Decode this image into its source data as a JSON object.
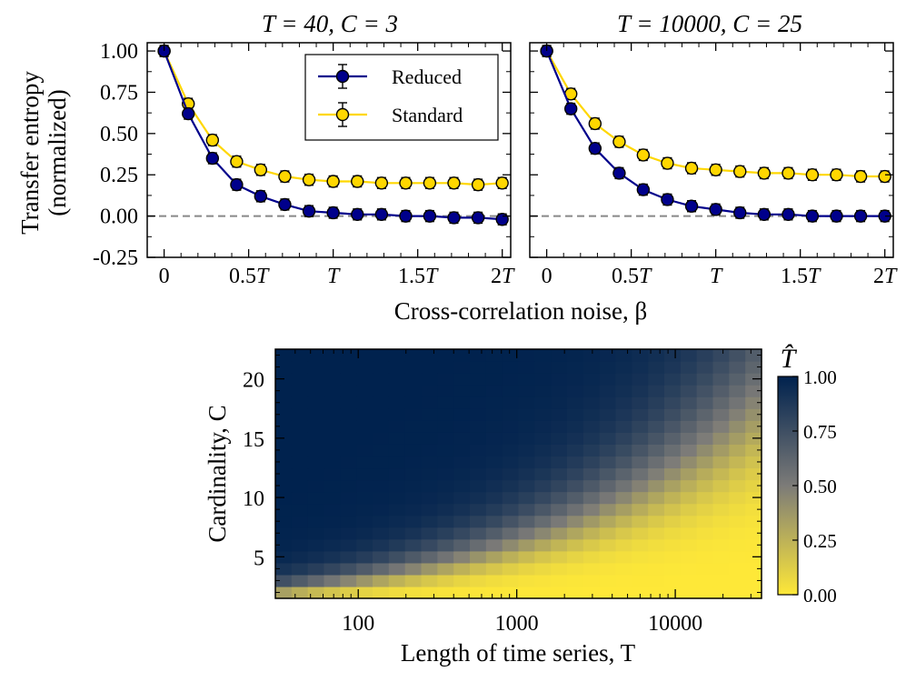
{
  "colors": {
    "reduced": "#00008b",
    "standard": "#ffd700",
    "marker_edge": "#000000",
    "zero_line": "#888888",
    "cmap_high": "#00224e",
    "cmap_mid": "#7c7b78",
    "cmap_low": "#fee838"
  },
  "chart_data": [
    {
      "type": "line",
      "panel": "top-left",
      "title": "T = 40, C = 3",
      "ylabel_line1": "Transfer entropy",
      "ylabel_line2": "(normalized)",
      "xlabel": "",
      "ylim": [
        -0.25,
        1.05
      ],
      "yticks": [
        "1.00",
        "0.75",
        "0.50",
        "0.25",
        "0.00",
        "-0.25"
      ],
      "ytick_values": [
        1.0,
        0.75,
        0.5,
        0.25,
        0.0,
        -0.25
      ],
      "xlim": [
        -0.1,
        2.05
      ],
      "xticks": [
        "0",
        "0.5T",
        "T",
        "1.5T",
        "2T"
      ],
      "xtick_values": [
        0,
        0.5,
        1.0,
        1.5,
        2.0
      ],
      "zero_line": true,
      "legend_position": "top-right",
      "x": [
        0,
        0.143,
        0.286,
        0.429,
        0.571,
        0.714,
        0.857,
        1.0,
        1.143,
        1.286,
        1.429,
        1.571,
        1.714,
        1.857,
        2.0
      ],
      "series": [
        {
          "name": "Reduced",
          "values": [
            1.0,
            0.62,
            0.35,
            0.19,
            0.12,
            0.07,
            0.03,
            0.02,
            0.01,
            0.01,
            0.0,
            0.0,
            -0.01,
            -0.01,
            -0.02
          ],
          "errors": [
            0.01,
            0.03,
            0.03,
            0.02,
            0.02,
            0.02,
            0.02,
            0.02,
            0.02,
            0.02,
            0.02,
            0.02,
            0.02,
            0.02,
            0.02
          ]
        },
        {
          "name": "Standard",
          "values": [
            1.0,
            0.68,
            0.46,
            0.33,
            0.28,
            0.24,
            0.22,
            0.21,
            0.21,
            0.2,
            0.2,
            0.2,
            0.2,
            0.19,
            0.2
          ],
          "errors": [
            0.01,
            0.02,
            0.02,
            0.02,
            0.02,
            0.02,
            0.02,
            0.02,
            0.02,
            0.02,
            0.02,
            0.02,
            0.02,
            0.02,
            0.02
          ]
        }
      ]
    },
    {
      "type": "line",
      "panel": "top-right",
      "title": "T = 10000, C = 25",
      "xlabel": "Cross-correlation noise, β",
      "ylim": [
        -0.25,
        1.05
      ],
      "xlim": [
        -0.1,
        2.05
      ],
      "xticks": [
        "0",
        "0.5T",
        "T",
        "1.5T",
        "2T"
      ],
      "xtick_values": [
        0,
        0.5,
        1.0,
        1.5,
        2.0
      ],
      "zero_line": true,
      "x": [
        0,
        0.143,
        0.286,
        0.429,
        0.571,
        0.714,
        0.857,
        1.0,
        1.143,
        1.286,
        1.429,
        1.571,
        1.714,
        1.857,
        2.0
      ],
      "series": [
        {
          "name": "Reduced",
          "values": [
            1.0,
            0.65,
            0.41,
            0.26,
            0.16,
            0.1,
            0.06,
            0.04,
            0.02,
            0.01,
            0.01,
            0.0,
            0.0,
            0.0,
            0.0
          ],
          "errors": [
            0.005,
            0.01,
            0.01,
            0.01,
            0.01,
            0.01,
            0.01,
            0.01,
            0.01,
            0.01,
            0.01,
            0.01,
            0.01,
            0.01,
            0.01
          ]
        },
        {
          "name": "Standard",
          "values": [
            1.0,
            0.74,
            0.56,
            0.45,
            0.37,
            0.32,
            0.29,
            0.28,
            0.27,
            0.26,
            0.26,
            0.25,
            0.25,
            0.24,
            0.24
          ],
          "errors": [
            0.005,
            0.01,
            0.01,
            0.01,
            0.01,
            0.01,
            0.01,
            0.01,
            0.01,
            0.01,
            0.01,
            0.01,
            0.01,
            0.01,
            0.01
          ]
        }
      ]
    },
    {
      "type": "heatmap",
      "panel": "bottom",
      "title": "",
      "xlabel": "Length of time series, T",
      "ylabel": "Cardinality, C",
      "x_scale": "log",
      "x_range": [
        30,
        35000
      ],
      "xticks": [
        "100",
        "1000",
        "10000"
      ],
      "xtick_values": [
        100,
        1000,
        10000
      ],
      "y_range": [
        2,
        22
      ],
      "yticks": [
        "20",
        "15",
        "10",
        "5"
      ],
      "ytick_values": [
        20,
        15,
        10,
        5
      ],
      "grid": {
        "nx": 30,
        "ny": 21
      },
      "value_model": "T_hat ≈ 1 / (1 + (T / (2 · C^3.3))^1.3), clipped to [0, 1]",
      "colorbar": {
        "label": "T̂",
        "range": [
          0.0,
          1.0
        ],
        "ticks": [
          "1.00",
          "0.75",
          "0.50",
          "0.25",
          "0.00"
        ],
        "tick_values": [
          1.0,
          0.75,
          0.5,
          0.25,
          0.0
        ]
      }
    }
  ]
}
